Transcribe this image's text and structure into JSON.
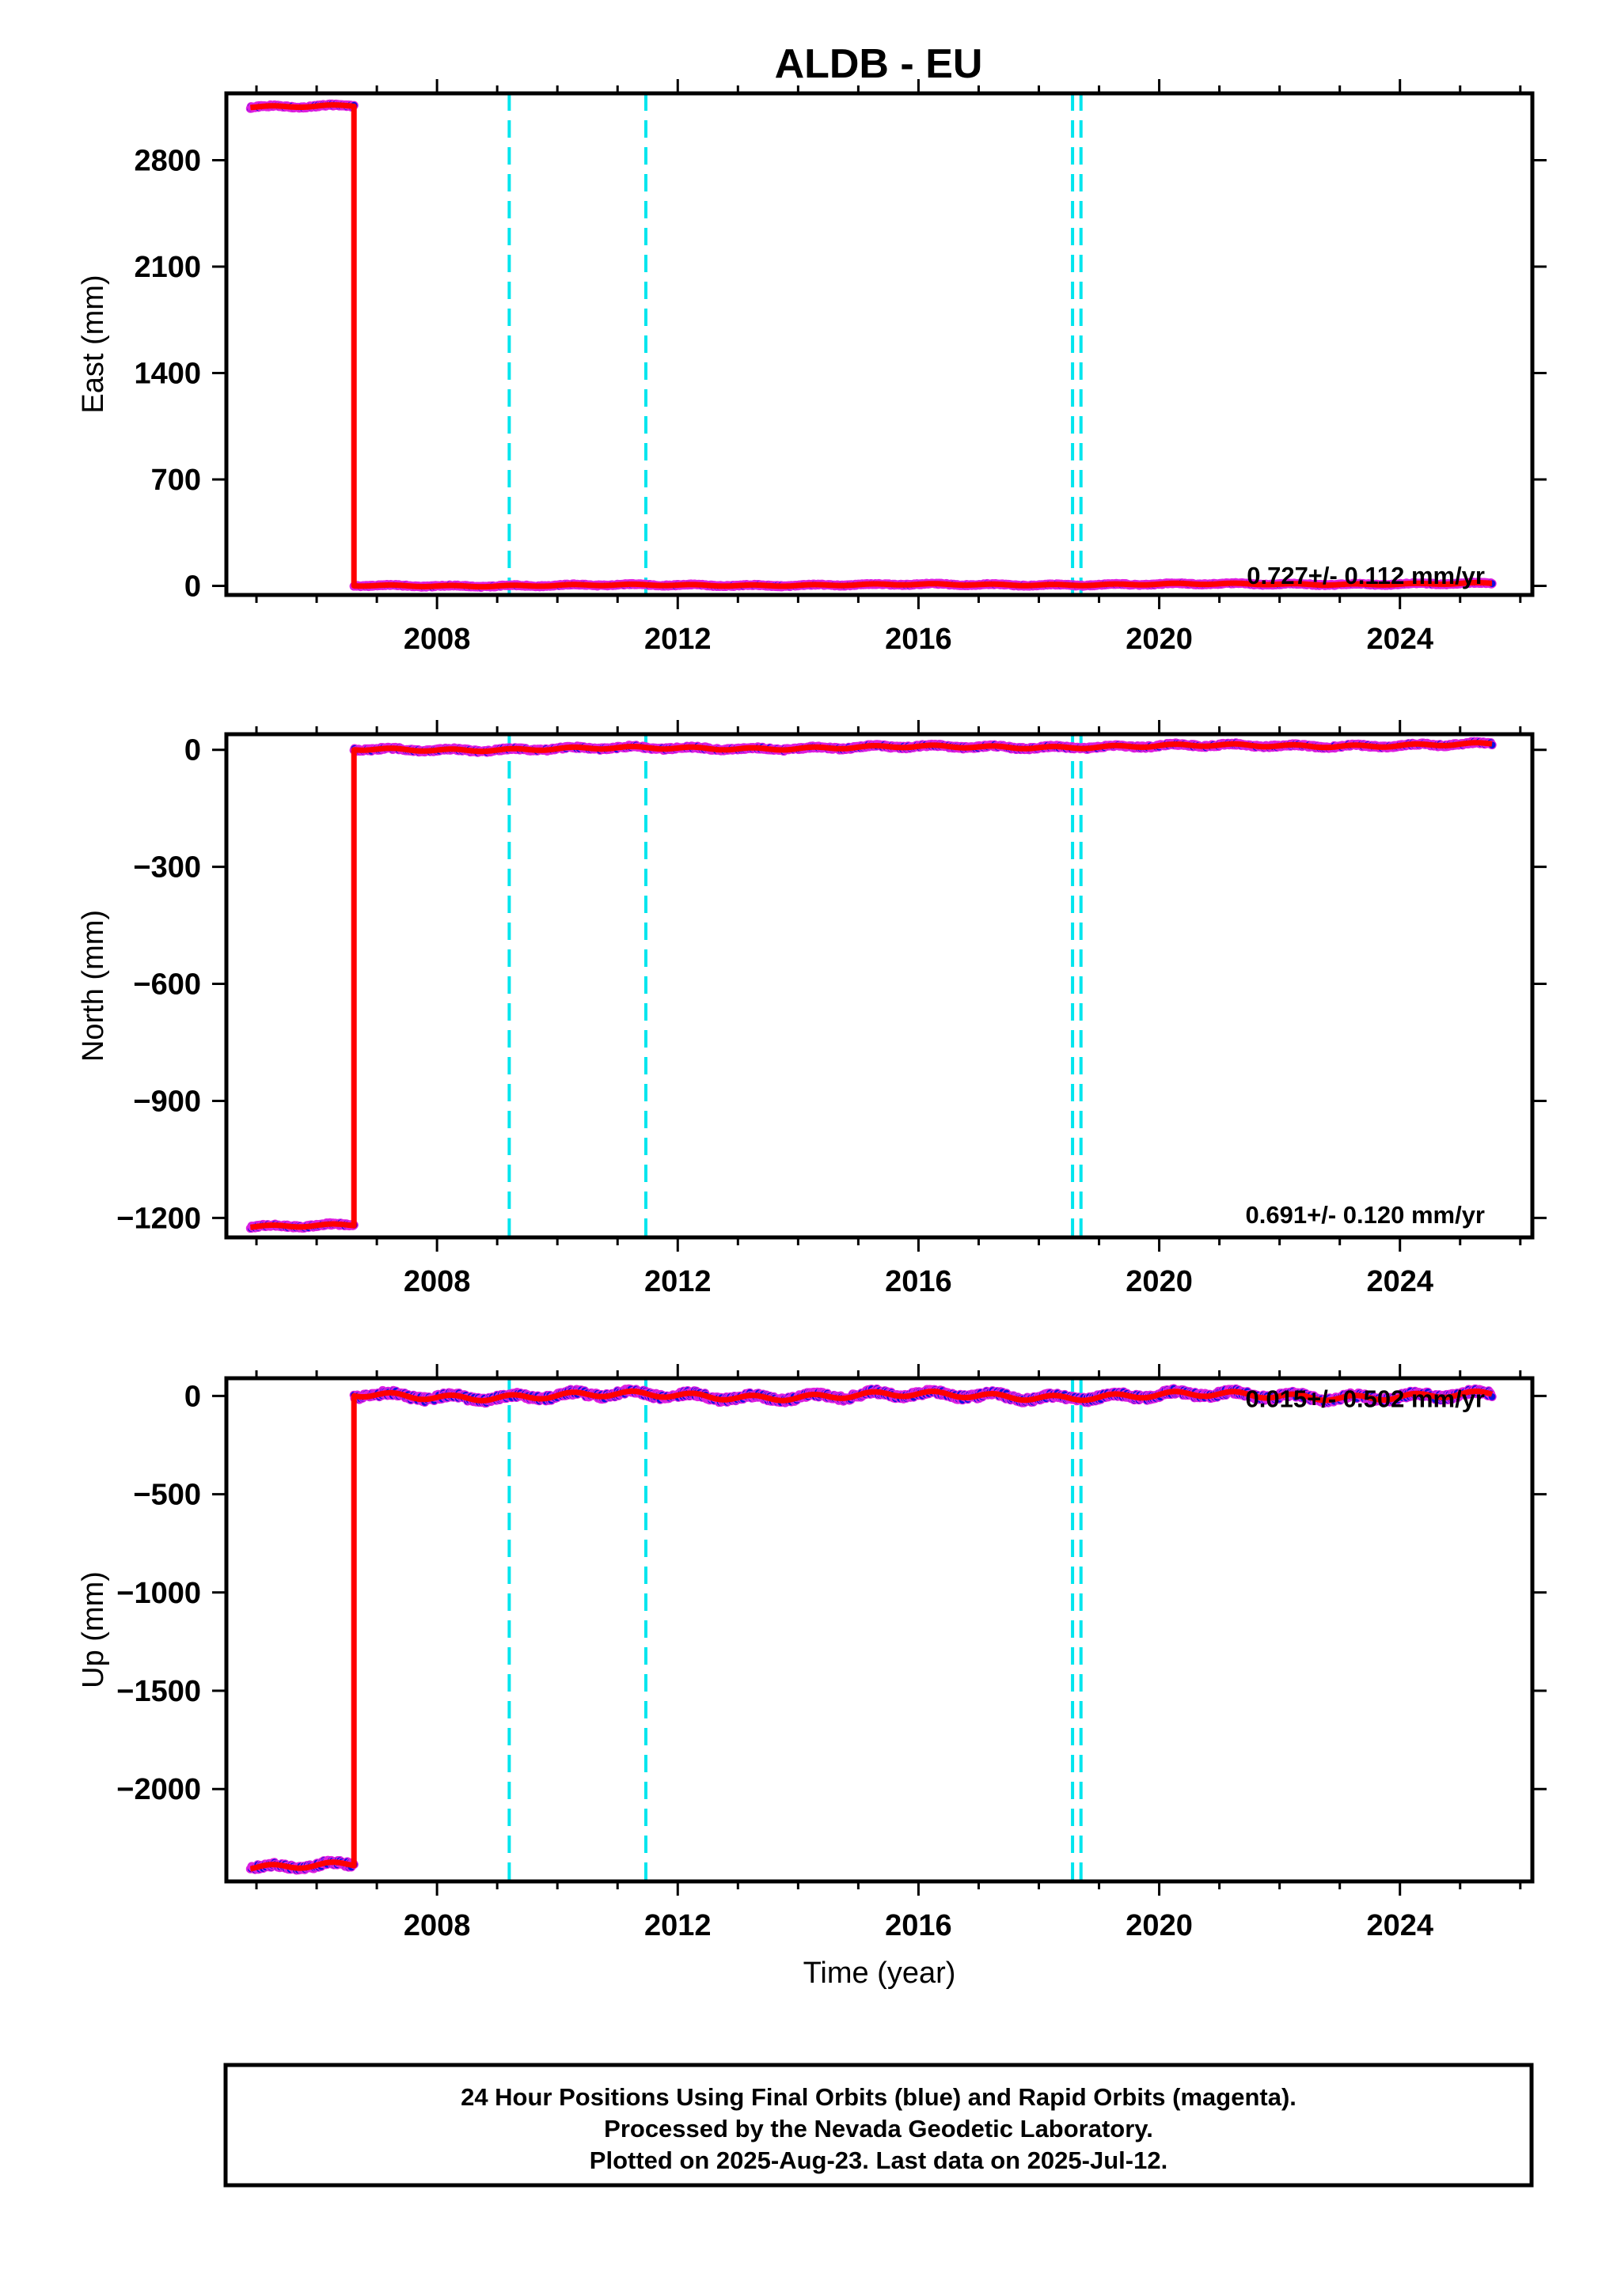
{
  "title": "ALDB - EU",
  "colors": {
    "final_orbits": "#1010e0",
    "rapid_orbits": "#e020e0",
    "model": "#ff0000",
    "event_lines": "#00e5ee",
    "axes": "#000000"
  },
  "chart_data": [
    {
      "type": "scatter",
      "component": "East",
      "ylabel": "East (mm)",
      "xlabel": "",
      "xlim": [
        2004.5,
        2026.2
      ],
      "ylim": [
        -60,
        3240
      ],
      "yticks": [
        0,
        700,
        1400,
        2100,
        2800
      ],
      "xticks": [
        2008,
        2012,
        2016,
        2020,
        2024
      ],
      "event_lines": [
        2009.2,
        2011.47,
        2018.56,
        2018.7
      ],
      "rate_label": "0.727+/- 0.112 mm/yr",
      "segments": [
        {
          "start": 2004.9,
          "end": 2006.62,
          "level": 3155,
          "amplitude": 10
        },
        {
          "start": 2006.62,
          "end": 2025.53,
          "level": 0,
          "amplitude": 7,
          "trend": 0.727
        }
      ],
      "step": {
        "x": 2006.62,
        "from": 3155,
        "to": 0
      }
    },
    {
      "type": "scatter",
      "component": "North",
      "ylabel": "North (mm)",
      "xlabel": "",
      "xlim": [
        2004.5,
        2026.2
      ],
      "ylim": [
        -1250,
        40
      ],
      "yticks": [
        -1200,
        -900,
        -600,
        -300,
        0
      ],
      "xticks": [
        2008,
        2012,
        2016,
        2020,
        2024
      ],
      "event_lines": [
        2009.2,
        2011.47,
        2018.56,
        2018.7
      ],
      "rate_label": "0.691+/- 0.120 mm/yr",
      "segments": [
        {
          "start": 2004.9,
          "end": 2006.62,
          "level": -1220,
          "amplitude": 5
        },
        {
          "start": 2006.62,
          "end": 2025.53,
          "level": 0,
          "amplitude": 5,
          "trend": 0.691
        }
      ],
      "step": {
        "x": 2006.62,
        "from": -1220,
        "to": 0
      }
    },
    {
      "type": "scatter",
      "component": "Up",
      "ylabel": "Up (mm)",
      "xlabel": "Time (year)",
      "xlim": [
        2004.5,
        2026.2
      ],
      "ylim": [
        -2470,
        90
      ],
      "yticks": [
        -2000,
        -1500,
        -1000,
        -500,
        0
      ],
      "xticks": [
        2008,
        2012,
        2016,
        2020,
        2024
      ],
      "event_lines": [
        2009.2,
        2011.47,
        2018.56,
        2018.7
      ],
      "rate_label": "0.015+/- 0.502 mm/yr",
      "segments": [
        {
          "start": 2004.9,
          "end": 2006.62,
          "level": -2390,
          "amplitude": 20
        },
        {
          "start": 2006.62,
          "end": 2025.53,
          "level": 0,
          "amplitude": 22,
          "trend": 0.015
        }
      ],
      "step": {
        "x": 2006.62,
        "from": -2390,
        "to": 0
      }
    }
  ],
  "footer": {
    "line1": "24 Hour Positions Using Final Orbits (blue) and Rapid Orbits (magenta).",
    "line2": "Processed by the Nevada Geodetic Laboratory.",
    "line3": "Plotted on 2025-Aug-23. Last data on 2025-Jul-12."
  }
}
